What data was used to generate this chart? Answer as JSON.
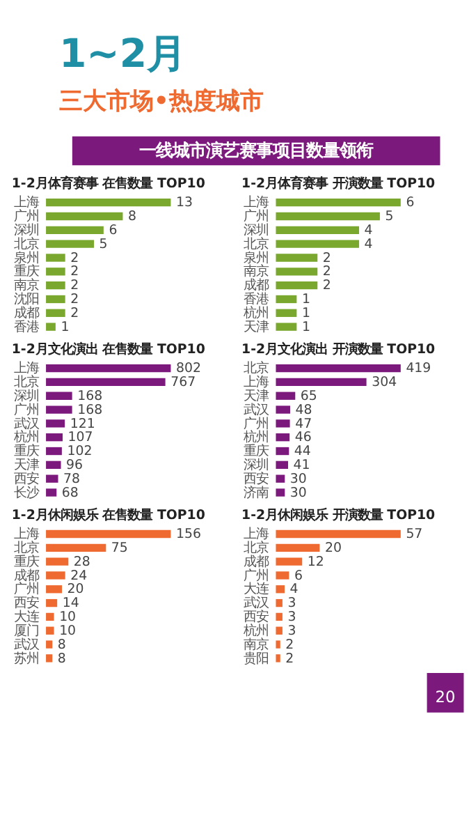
{
  "chart_data": [
    {
      "type": "bar",
      "orientation": "horizontal",
      "title": "1-2月体育赛事  在售数量 TOP10",
      "annotations": [
        "1~2月",
        "三大市场•热度城市",
        "一线城市演艺赛事项目数量领衔"
      ],
      "categories": [
        "上海",
        "广州",
        "深圳",
        "北京",
        "泉州",
        "重庆",
        "南京",
        "沈阳",
        "成都",
        "香港"
      ],
      "values": [
        13,
        8,
        6,
        5,
        2,
        2,
        2,
        2,
        2,
        1
      ],
      "color": "#7aa82e",
      "data_labels": true
    },
    {
      "type": "bar",
      "orientation": "horizontal",
      "title": "1-2月体育赛事  开演数量 TOP10",
      "categories": [
        "上海",
        "广州",
        "深圳",
        "北京",
        "泉州",
        "南京",
        "成都",
        "香港",
        "杭州",
        "天津"
      ],
      "values": [
        6,
        5,
        4,
        4,
        2,
        2,
        2,
        1,
        1,
        1
      ],
      "color": "#7aa82e",
      "data_labels": true
    },
    {
      "type": "bar",
      "orientation": "horizontal",
      "title": "1-2月文化演出  在售数量 TOP10",
      "categories": [
        "上海",
        "北京",
        "深圳",
        "广州",
        "武汉",
        "杭州",
        "重庆",
        "天津",
        "西安",
        "长沙"
      ],
      "values": [
        802,
        767,
        168,
        168,
        121,
        107,
        102,
        96,
        78,
        68
      ],
      "color": "#7b1a7c",
      "data_labels": true
    },
    {
      "type": "bar",
      "orientation": "horizontal",
      "title": "1-2月文化演出  开演数量 TOP10",
      "categories": [
        "北京",
        "上海",
        "天津",
        "武汉",
        "广州",
        "杭州",
        "重庆",
        "深圳",
        "西安",
        "济南"
      ],
      "values": [
        419,
        304,
        65,
        48,
        47,
        46,
        44,
        41,
        30,
        30
      ],
      "color": "#7b1a7c",
      "data_labels": true
    },
    {
      "type": "bar",
      "orientation": "horizontal",
      "title": "1-2月休闲娱乐  在售数量 TOP10",
      "categories": [
        "上海",
        "北京",
        "重庆",
        "成都",
        "广州",
        "西安",
        "大连",
        "厦门",
        "武汉",
        "苏州"
      ],
      "values": [
        156,
        75,
        28,
        24,
        20,
        14,
        10,
        10,
        8,
        8
      ],
      "color": "#ee6a30",
      "data_labels": true
    },
    {
      "type": "bar",
      "orientation": "horizontal",
      "title": "1-2月休闲娱乐  开演数量 TOP10",
      "annotations": [
        "20"
      ],
      "categories": [
        "上海",
        "北京",
        "成都",
        "广州",
        "大连",
        "武汉",
        "西安",
        "杭州",
        "南京",
        "贵阳"
      ],
      "values": [
        57,
        20,
        12,
        6,
        4,
        3,
        3,
        3,
        2,
        2
      ],
      "color": "#ee6a30",
      "data_labels": true
    }
  ]
}
